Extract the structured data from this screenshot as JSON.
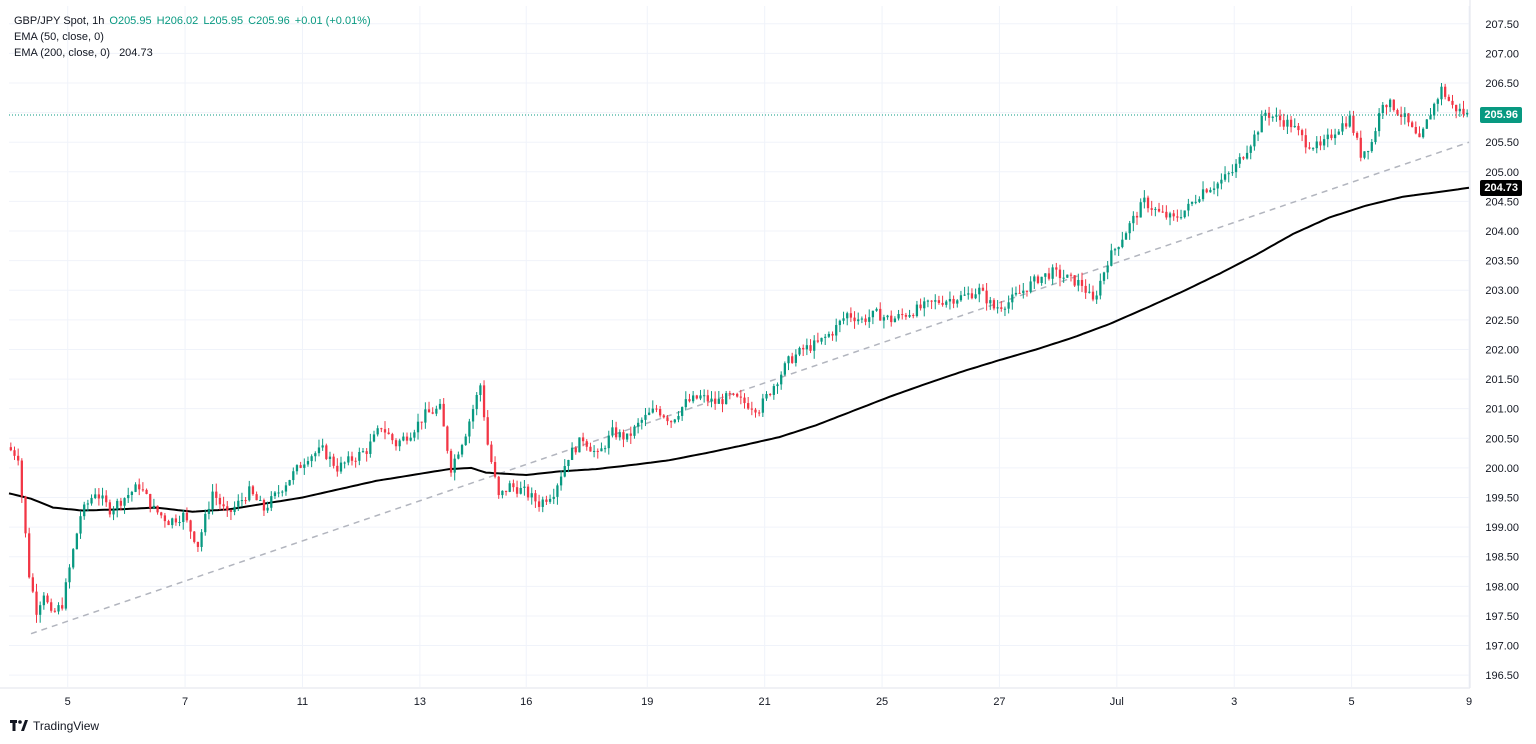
{
  "legend": {
    "symbol": "GBP/JPY Spot",
    "timeframe": "1h",
    "open": "O205.95",
    "high": "H206.02",
    "low": "L205.95",
    "close": "C205.96",
    "change": "+0.01 (+0.01%)",
    "ema50_label": "EMA (50, close, 0)",
    "ema200_label": "EMA (200, close, 0)",
    "ema200_value": "204.73"
  },
  "price_tags": {
    "last_price": "205.96",
    "ema200": "204.73"
  },
  "brand": {
    "name": "TradingView",
    "icon": "tradingview-logo-icon"
  },
  "colors": {
    "up": "#089981",
    "down": "#f23645",
    "ema200": "#000000",
    "trendline": "#b2b5be",
    "last_price_line": "#089981"
  },
  "chart_data": {
    "type": "candlestick",
    "symbol": "GBP/JPY Spot",
    "interval": "1h",
    "ylim": [
      196.3,
      207.8
    ],
    "y_ticks": [
      196.5,
      197.0,
      197.5,
      198.0,
      198.5,
      199.0,
      199.5,
      200.0,
      200.5,
      201.0,
      201.5,
      202.0,
      202.5,
      203.0,
      203.5,
      204.0,
      204.5,
      205.0,
      205.5,
      206.0,
      206.5,
      207.0,
      207.5
    ],
    "y_tick_labels": [
      "196.50",
      "197.00",
      "197.50",
      "198.00",
      "198.50",
      "199.00",
      "199.50",
      "200.00",
      "200.50",
      "201.00",
      "201.50",
      "202.00",
      "202.50",
      "203.00",
      "203.50",
      "204.00",
      "204.50",
      "205.00",
      "205.50",
      "206.00",
      "206.50",
      "207.00",
      "207.50"
    ],
    "x_ticks": [
      {
        "label": "5",
        "index": 16
      },
      {
        "label": "7",
        "index": 48
      },
      {
        "label": "11",
        "index": 80
      },
      {
        "label": "13",
        "index": 112
      },
      {
        "label": "16",
        "index": 141
      },
      {
        "label": "19",
        "index": 174
      },
      {
        "label": "21",
        "index": 206
      },
      {
        "label": "25",
        "index": 238
      },
      {
        "label": "27",
        "index": 270
      },
      {
        "label": "Jul",
        "index": 302
      },
      {
        "label": "3",
        "index": 334
      },
      {
        "label": "5",
        "index": 366
      },
      {
        "label": "9",
        "index": 398
      }
    ],
    "bar_count": 398,
    "price_anchors": [
      [
        0,
        200.35
      ],
      [
        3,
        200.2
      ],
      [
        6,
        198.2
      ],
      [
        8,
        197.6
      ],
      [
        10,
        197.9
      ],
      [
        12,
        197.5
      ],
      [
        15,
        197.7
      ],
      [
        20,
        199.2
      ],
      [
        24,
        199.6
      ],
      [
        28,
        199.3
      ],
      [
        32,
        199.5
      ],
      [
        36,
        199.7
      ],
      [
        40,
        199.3
      ],
      [
        44,
        199.1
      ],
      [
        48,
        199.2
      ],
      [
        52,
        198.7
      ],
      [
        56,
        199.6
      ],
      [
        60,
        199.2
      ],
      [
        66,
        199.6
      ],
      [
        70,
        199.3
      ],
      [
        74,
        199.6
      ],
      [
        78,
        199.9
      ],
      [
        82,
        200.2
      ],
      [
        86,
        200.3
      ],
      [
        90,
        200.0
      ],
      [
        94,
        200.15
      ],
      [
        98,
        200.3
      ],
      [
        102,
        200.7
      ],
      [
        106,
        200.4
      ],
      [
        110,
        200.6
      ],
      [
        114,
        200.9
      ],
      [
        118,
        201.0
      ],
      [
        121,
        200.0
      ],
      [
        125,
        200.6
      ],
      [
        129,
        201.4
      ],
      [
        131,
        200.4
      ],
      [
        134,
        199.5
      ],
      [
        137,
        199.7
      ],
      [
        141,
        199.6
      ],
      [
        145,
        199.4
      ],
      [
        149,
        199.6
      ],
      [
        153,
        200.2
      ],
      [
        157,
        200.5
      ],
      [
        161,
        200.2
      ],
      [
        165,
        200.6
      ],
      [
        169,
        200.5
      ],
      [
        173,
        200.8
      ],
      [
        177,
        201.0
      ],
      [
        181,
        200.8
      ],
      [
        185,
        201.1
      ],
      [
        189,
        201.2
      ],
      [
        193,
        201.1
      ],
      [
        197,
        201.2
      ],
      [
        201,
        201.1
      ],
      [
        205,
        201.0
      ],
      [
        209,
        201.4
      ],
      [
        213,
        201.8
      ],
      [
        217,
        202.0
      ],
      [
        221,
        202.1
      ],
      [
        225,
        202.3
      ],
      [
        229,
        202.6
      ],
      [
        233,
        202.5
      ],
      [
        237,
        202.6
      ],
      [
        241,
        202.5
      ],
      [
        245,
        202.6
      ],
      [
        249,
        202.7
      ],
      [
        253,
        202.8
      ],
      [
        257,
        202.85
      ],
      [
        261,
        202.9
      ],
      [
        265,
        203.0
      ],
      [
        269,
        202.7
      ],
      [
        273,
        202.8
      ],
      [
        277,
        203.0
      ],
      [
        281,
        203.2
      ],
      [
        285,
        203.3
      ],
      [
        289,
        203.2
      ],
      [
        293,
        203.1
      ],
      [
        296,
        202.8
      ],
      [
        300,
        203.5
      ],
      [
        304,
        203.9
      ],
      [
        307,
        204.2
      ],
      [
        310,
        204.5
      ],
      [
        314,
        204.3
      ],
      [
        318,
        204.2
      ],
      [
        322,
        204.4
      ],
      [
        326,
        204.7
      ],
      [
        330,
        204.8
      ],
      [
        334,
        205.0
      ],
      [
        337,
        205.3
      ],
      [
        340,
        205.6
      ],
      [
        343,
        206.0
      ],
      [
        346,
        205.9
      ],
      [
        350,
        205.8
      ],
      [
        354,
        205.5
      ],
      [
        358,
        205.4
      ],
      [
        362,
        205.7
      ],
      [
        366,
        205.9
      ],
      [
        369,
        205.3
      ],
      [
        372,
        205.5
      ],
      [
        375,
        206.2
      ],
      [
        378,
        206.1
      ],
      [
        381,
        205.9
      ],
      [
        385,
        205.5
      ],
      [
        388,
        206.0
      ],
      [
        391,
        206.4
      ],
      [
        394,
        206.1
      ],
      [
        398,
        205.96
      ]
    ],
    "ema200_anchors": [
      [
        0,
        199.57
      ],
      [
        6,
        199.48
      ],
      [
        12,
        199.33
      ],
      [
        20,
        199.28
      ],
      [
        30,
        199.3
      ],
      [
        40,
        199.33
      ],
      [
        50,
        199.26
      ],
      [
        60,
        199.3
      ],
      [
        70,
        199.4
      ],
      [
        80,
        199.5
      ],
      [
        90,
        199.64
      ],
      [
        100,
        199.78
      ],
      [
        110,
        199.88
      ],
      [
        120,
        199.98
      ],
      [
        126,
        200.0
      ],
      [
        130,
        199.92
      ],
      [
        141,
        199.88
      ],
      [
        150,
        199.94
      ],
      [
        160,
        199.98
      ],
      [
        170,
        200.05
      ],
      [
        180,
        200.13
      ],
      [
        190,
        200.25
      ],
      [
        200,
        200.38
      ],
      [
        210,
        200.52
      ],
      [
        220,
        200.72
      ],
      [
        230,
        200.96
      ],
      [
        240,
        201.2
      ],
      [
        250,
        201.42
      ],
      [
        260,
        201.63
      ],
      [
        270,
        201.82
      ],
      [
        280,
        202.0
      ],
      [
        290,
        202.2
      ],
      [
        300,
        202.43
      ],
      [
        310,
        202.7
      ],
      [
        320,
        202.98
      ],
      [
        330,
        203.28
      ],
      [
        340,
        203.6
      ],
      [
        350,
        203.95
      ],
      [
        360,
        204.23
      ],
      [
        370,
        204.43
      ],
      [
        380,
        204.58
      ],
      [
        390,
        204.66
      ],
      [
        398,
        204.73
      ]
    ],
    "trendline": {
      "from": [
        6,
        197.2
      ],
      "to": [
        398,
        205.5
      ]
    },
    "last_price": 205.96,
    "ema200_last": 204.73,
    "grid": true,
    "legend_position": "top-left"
  }
}
